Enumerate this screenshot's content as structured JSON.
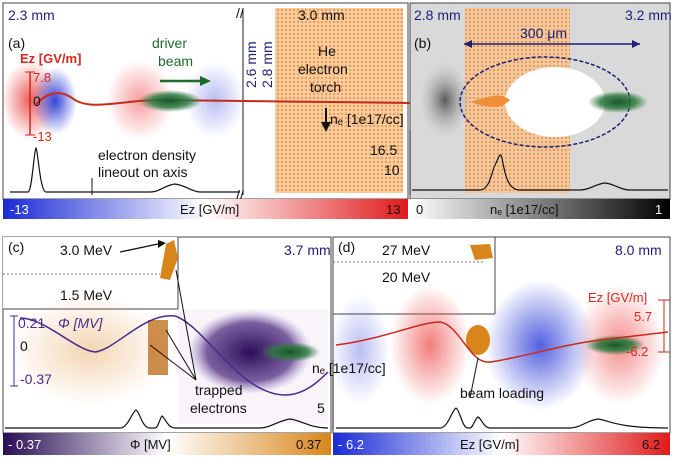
{
  "panel_a": {
    "label": "(a)",
    "distance_left": "2.3 mm",
    "distance_right": "3.0 mm",
    "ez_axis_label": "Eᴢ [GV/m]",
    "ez_ticks": [
      "7.8",
      "0",
      "-13"
    ],
    "driver_beam": [
      "driver",
      "beam"
    ],
    "torch_label": [
      "He",
      "electron",
      "torch"
    ],
    "dist_mid_1": "2.6 mm",
    "dist_mid_2": "2.8 mm",
    "lineout_caption": [
      "electron density",
      "lineout on axis"
    ],
    "colorbar": {
      "min": "-13",
      "label": "Eᴢ [GV/m]",
      "max": "13"
    }
  },
  "panel_b": {
    "label": "(b)",
    "distance_left": "2.8 mm",
    "distance_right": "3.2 mm",
    "scale_bar": "300 μm",
    "ne_axis_label": "nₑ [1e17/cc]",
    "ne_ticks": [
      "16.5",
      "10"
    ],
    "colorbar": {
      "min": "0",
      "label": "nₑ [1e17/cc]",
      "max": "1"
    }
  },
  "panel_c": {
    "label": "(c)",
    "distance": "3.7 mm",
    "energy_high": "3.0 MeV",
    "energy_low": "1.5 MeV",
    "phi_axis_label": "Φ [MV]",
    "phi_ticks": [
      "0.21",
      "0",
      "-0.37"
    ],
    "trapped_label": [
      "trapped",
      "electrons"
    ],
    "colorbar": {
      "min": "- 0.37",
      "label": "Φ [MV]",
      "max": "0.37"
    }
  },
  "panel_d": {
    "label": "(d)",
    "distance": "8.0 mm",
    "energy_high": "27 MeV",
    "energy_low": "20 MeV",
    "ez_axis_label": "Eᴢ [GV/m]",
    "ez_ticks": [
      "5.7",
      "-6.2"
    ],
    "ne_axis_label": "nₑ [1e17/cc]",
    "ne_tick": "5",
    "beam_loading_label": "beam loading",
    "colorbar": {
      "min": "- 6.2",
      "label": "Eᴢ [GV/m]",
      "max": "6.2"
    }
  },
  "colors": {
    "field_red": "#e5383b",
    "field_blue": "#2d3fd1",
    "torch_orange": "#f0a050",
    "beam_green": "#1f6b35",
    "phi_purple": "#3b1f6b",
    "label_blue": "#1e1e7a"
  }
}
